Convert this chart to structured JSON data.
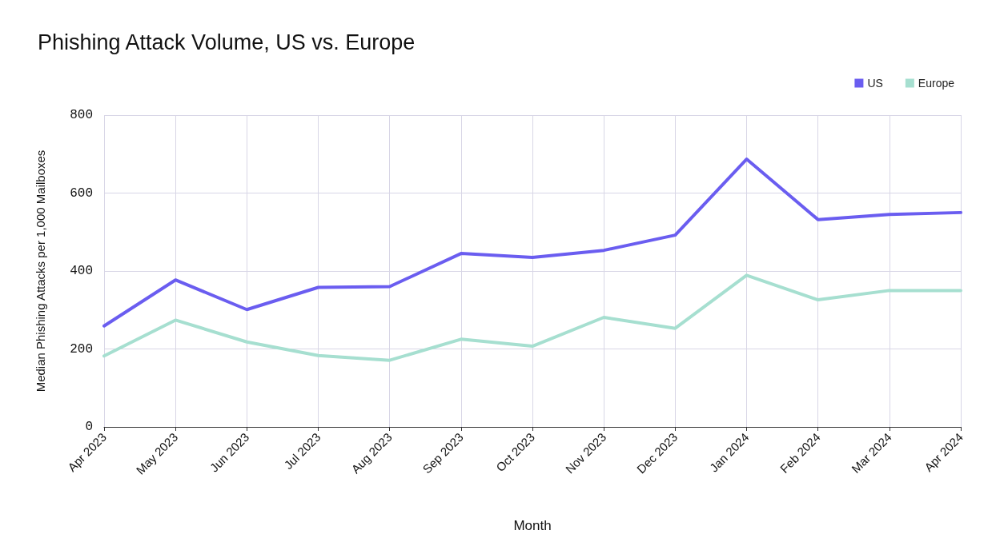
{
  "chart_data": {
    "type": "line",
    "title": "Phishing Attack Volume, US vs. Europe",
    "xlabel": "Month",
    "ylabel": "Median Phishing Attacks per 1,000 Mailboxes",
    "categories": [
      "Apr 2023",
      "May 2023",
      "Jun 2023",
      "Jul 2023",
      "Aug 2023",
      "Sep 2023",
      "Oct 2023",
      "Nov 2023",
      "Dec 2023",
      "Jan 2024",
      "Feb 2024",
      "Mar 2024",
      "Apr 2024"
    ],
    "series": [
      {
        "name": "US",
        "color": "#6a5df0",
        "values": [
          259,
          377,
          301,
          358,
          360,
          445,
          435,
          453,
          492,
          687,
          532,
          545,
          550
        ]
      },
      {
        "name": "Europe",
        "color": "#a6dfd0",
        "values": [
          182,
          274,
          218,
          183,
          171,
          225,
          207,
          281,
          253,
          389,
          326,
          350,
          350
        ]
      }
    ],
    "ylim": [
      0,
      800
    ],
    "yticks": [
      0,
      200,
      400,
      600,
      800
    ],
    "grid": true,
    "legend": "top right",
    "marker": "none",
    "line_style": "solid"
  }
}
